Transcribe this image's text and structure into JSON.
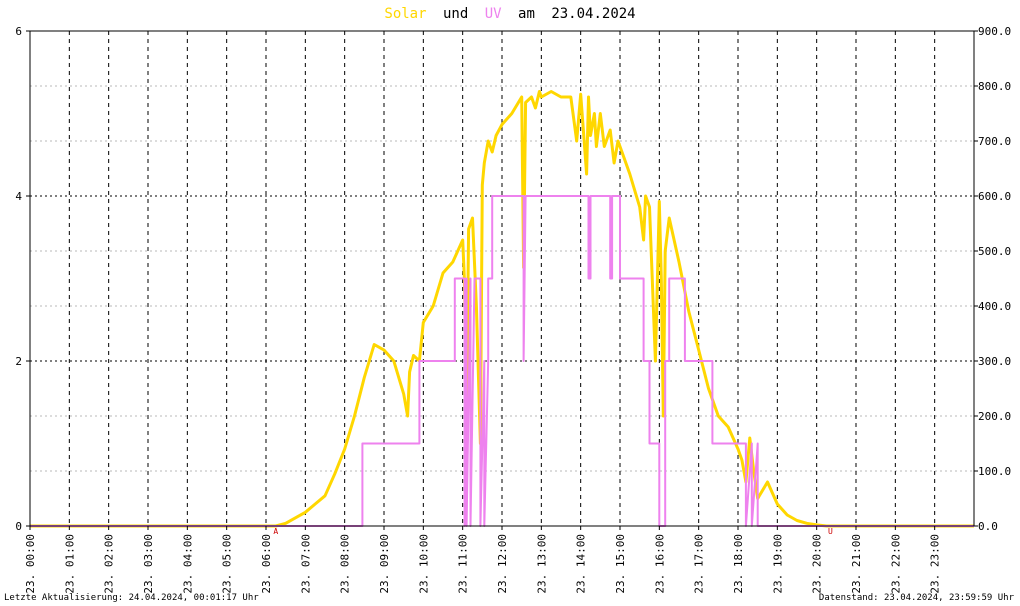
{
  "chart_data": {
    "type": "line",
    "title": {
      "series_a": "Solar",
      "connector_1": "und",
      "series_b": "UV",
      "connector_2": "am",
      "date": "23.04.2024"
    },
    "colors": {
      "solar": "#ffd700",
      "uv": "#ee82ee",
      "text": "#000000",
      "marker": "#cc0000"
    },
    "x_range": [
      0,
      24
    ],
    "y_left": {
      "range": [
        0,
        6
      ],
      "ticks": [
        0,
        2,
        4,
        6
      ],
      "tick_labels": [
        "0",
        "2",
        "4",
        "6"
      ]
    },
    "y_right": {
      "range": [
        0,
        900
      ],
      "ticks": [
        0,
        100,
        200,
        300,
        400,
        500,
        600,
        700,
        800,
        900
      ],
      "tick_labels": [
        "0.0",
        "100.0",
        "200.0",
        "300.0",
        "400.0",
        "500.0",
        "600.0",
        "700.0",
        "800.0",
        "900.0"
      ]
    },
    "x_ticks": [
      0,
      1,
      2,
      3,
      4,
      5,
      6,
      7,
      8,
      9,
      10,
      11,
      12,
      13,
      14,
      15,
      16,
      17,
      18,
      19,
      20,
      21,
      22,
      23
    ],
    "x_tick_labels": [
      "23. 00:00",
      "23. 01:00",
      "23. 02:00",
      "23. 03:00",
      "23. 04:00",
      "23. 05:00",
      "23. 06:00",
      "23. 07:00",
      "23. 08:00",
      "23. 09:00",
      "23. 10:00",
      "23. 11:00",
      "23. 12:00",
      "23. 13:00",
      "23. 14:00",
      "23. 15:00",
      "23. 16:00",
      "23. 17:00",
      "23. 18:00",
      "23. 19:00",
      "23. 20:00",
      "23. 21:00",
      "23. 22:00",
      "23. 23:00"
    ],
    "grid": true,
    "markers": [
      {
        "x": 6.25,
        "label": "A"
      },
      {
        "x": 20.35,
        "label": "U"
      }
    ],
    "series": [
      {
        "name": "Solar",
        "axis": "right",
        "x": [
          0,
          6.25,
          6.5,
          6.75,
          7.0,
          7.25,
          7.5,
          7.75,
          8.0,
          8.25,
          8.5,
          8.75,
          9.0,
          9.25,
          9.5,
          9.6,
          9.65,
          9.75,
          9.9,
          10.0,
          10.25,
          10.5,
          10.75,
          11.0,
          11.05,
          11.1,
          11.15,
          11.25,
          11.35,
          11.45,
          11.5,
          11.55,
          11.65,
          11.75,
          11.85,
          12.0,
          12.25,
          12.5,
          12.55,
          12.6,
          12.75,
          12.85,
          12.95,
          13.0,
          13.25,
          13.5,
          13.75,
          13.9,
          14.0,
          14.15,
          14.2,
          14.25,
          14.35,
          14.4,
          14.5,
          14.6,
          14.75,
          14.85,
          14.95,
          15.0,
          15.25,
          15.5,
          15.6,
          15.65,
          15.75,
          15.9,
          16.0,
          16.05,
          16.1,
          16.15,
          16.25,
          16.5,
          16.75,
          17.0,
          17.25,
          17.5,
          17.75,
          18.0,
          18.1,
          18.2,
          18.3,
          18.4,
          18.5,
          18.75,
          19.0,
          19.25,
          19.5,
          19.75,
          20.0,
          20.25,
          20.35,
          24
        ],
        "y": [
          0,
          0,
          5,
          15,
          25,
          40,
          55,
          95,
          140,
          200,
          270,
          330,
          320,
          300,
          240,
          200,
          280,
          310,
          300,
          370,
          400,
          460,
          480,
          520,
          440,
          200,
          540,
          560,
          400,
          150,
          620,
          660,
          700,
          680,
          710,
          730,
          750,
          780,
          470,
          770,
          780,
          760,
          790,
          780,
          790,
          780,
          780,
          700,
          785,
          640,
          780,
          710,
          750,
          690,
          750,
          690,
          720,
          660,
          700,
          690,
          640,
          580,
          520,
          600,
          580,
          300,
          590,
          450,
          200,
          500,
          560,
          480,
          390,
          320,
          250,
          200,
          180,
          140,
          120,
          80,
          160,
          100,
          50,
          80,
          40,
          20,
          10,
          5,
          2,
          0,
          0,
          0
        ]
      },
      {
        "name": "UV",
        "axis": "left",
        "x": [
          0,
          8.45,
          8.45,
          9.9,
          9.9,
          10.8,
          10.8,
          11.05,
          11.05,
          11.1,
          11.1,
          11.2,
          11.2,
          11.3,
          11.3,
          11.45,
          11.45,
          11.55,
          11.55,
          11.65,
          11.65,
          11.75,
          11.75,
          12.55,
          12.55,
          12.6,
          12.6,
          14.2,
          14.2,
          14.25,
          14.25,
          14.75,
          14.75,
          14.8,
          14.8,
          15.0,
          15.0,
          15.6,
          15.6,
          15.75,
          15.75,
          16.0,
          16.0,
          16.15,
          16.15,
          16.25,
          16.25,
          16.65,
          16.65,
          17.35,
          17.35,
          18.2,
          18.2,
          18.35,
          18.35,
          18.5,
          18.5,
          24
        ],
        "y": [
          0,
          0,
          1,
          1,
          2,
          2,
          3,
          3,
          0,
          3,
          0,
          3,
          0,
          3,
          3,
          3,
          0,
          2,
          0,
          2,
          3,
          3,
          4,
          4,
          2,
          4,
          4,
          4,
          3,
          3,
          4,
          4,
          3,
          3,
          4,
          4,
          3,
          3,
          2,
          2,
          1,
          1,
          0,
          0,
          2,
          2,
          3,
          3,
          2,
          2,
          1,
          1,
          0,
          1,
          0,
          1,
          0,
          0
        ]
      }
    ]
  },
  "footer": {
    "left": "Letzte Aktualisierung: 24.04.2024, 00:01:17 Uhr",
    "right": "Datenstand: 23.04.2024, 23:59:59 Uhr"
  }
}
